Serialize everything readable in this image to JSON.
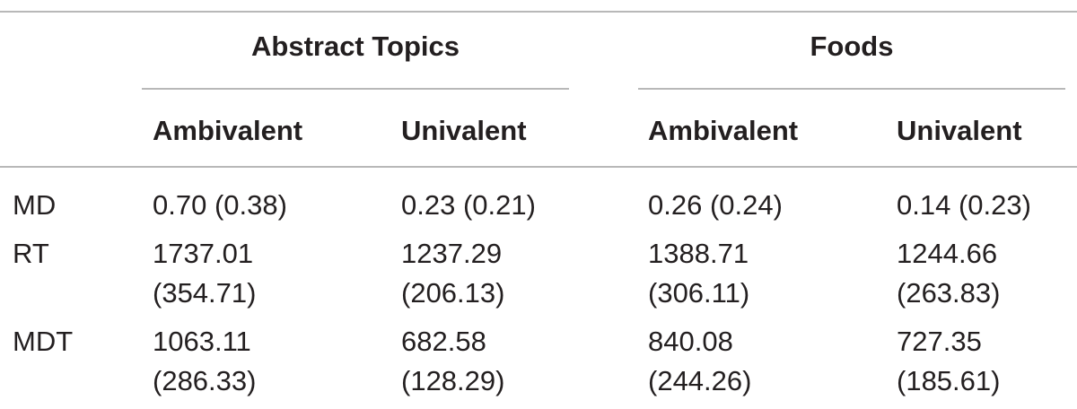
{
  "table": {
    "group_headers": [
      "Abstract Topics",
      "Foods"
    ],
    "sub_headers": [
      "Ambivalent",
      "Univalent",
      "Ambivalent",
      "Univalent"
    ],
    "rows": [
      {
        "label": "MD",
        "cells": [
          [
            "0.70 (0.38)"
          ],
          [
            "0.23 (0.21)"
          ],
          [
            "0.26 (0.24)"
          ],
          [
            "0.14 (0.23)"
          ]
        ]
      },
      {
        "label": "RT",
        "cells": [
          [
            "1737.01",
            "(354.71)"
          ],
          [
            "1237.29",
            "(206.13)"
          ],
          [
            "1388.71",
            "(306.11)"
          ],
          [
            "1244.66",
            "(263.83)"
          ]
        ]
      },
      {
        "label": "MDT",
        "cells": [
          [
            "1063.11",
            "(286.33)"
          ],
          [
            "682.58",
            "(128.29)"
          ],
          [
            "840.08",
            "(244.26)"
          ],
          [
            "727.35",
            "(185.61)"
          ]
        ]
      }
    ]
  }
}
